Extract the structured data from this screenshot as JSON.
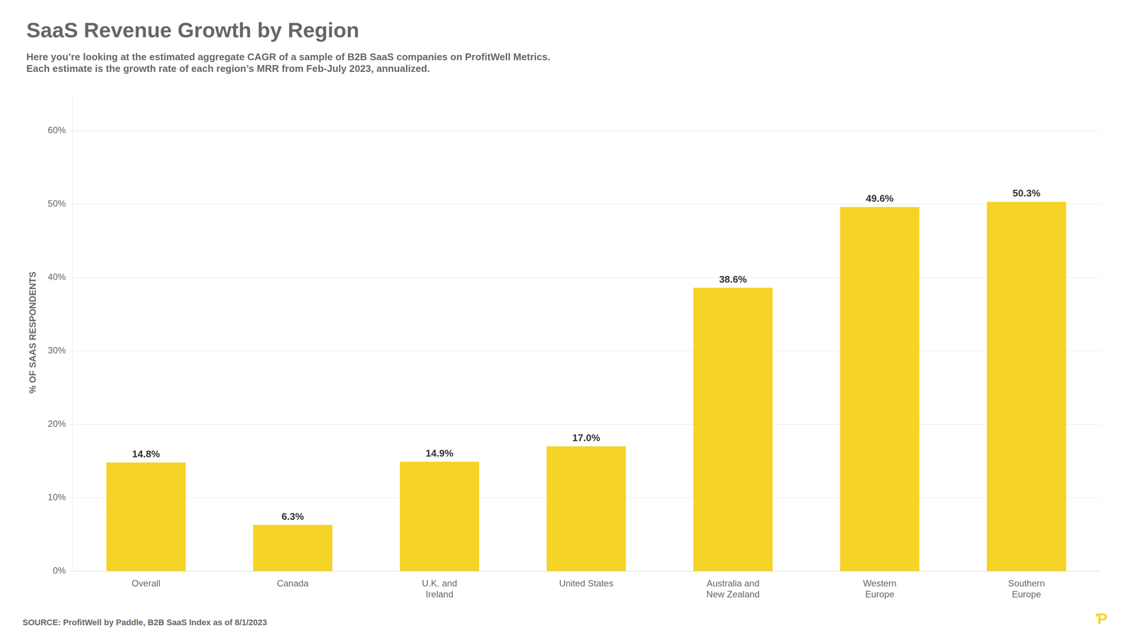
{
  "chart_data": {
    "type": "bar",
    "title": "SaaS Revenue Growth by Region",
    "subtitle": [
      "Here you’re looking at the estimated aggregate CAGR of a sample of B2B SaaS companies on ProfitWell Metrics.",
      "Each estimate is the growth rate of each region’s MRR from Feb-July 2023, annualized."
    ],
    "ylabel": "% OF SAAS RESPONDENTS",
    "annotations": [
      "SOURCE: ProfitWell by Paddle, B2B SaaS Index as of 8/1/2023",
      "Ƥ"
    ],
    "categories": [
      "Overall",
      "Canada",
      "U.K. and\nIreland",
      "United States",
      "Australia and\nNew Zealand",
      "Western\nEurope",
      "Southern\nEurope"
    ],
    "values": [
      14.8,
      6.3,
      14.9,
      17.0,
      38.6,
      49.6,
      50.3
    ],
    "value_labels": [
      "14.8%",
      "6.3%",
      "14.9%",
      "17.0%",
      "38.6%",
      "49.6%",
      "50.3%"
    ],
    "data_labels": true,
    "color": "#F5D327",
    "ylim": [
      0,
      65
    ],
    "yticks": [
      {
        "value": 0,
        "label": "0%"
      },
      {
        "value": 10,
        "label": "10%"
      },
      {
        "value": 20,
        "label": "20%"
      },
      {
        "value": 30,
        "label": "30%"
      },
      {
        "value": 40,
        "label": "40%"
      },
      {
        "value": 50,
        "label": "50%"
      },
      {
        "value": 60,
        "label": "60%"
      }
    ],
    "grid": true
  }
}
